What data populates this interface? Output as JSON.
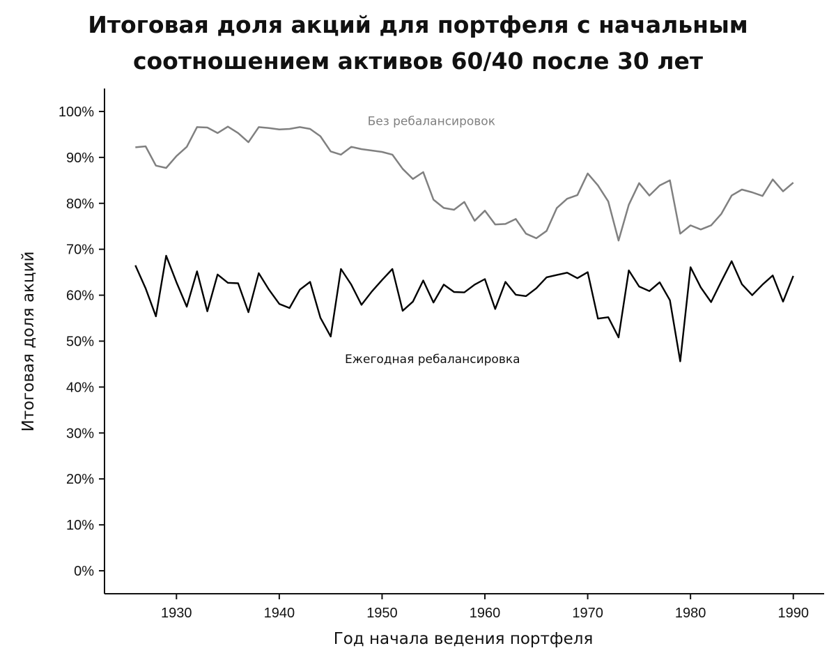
{
  "chart_data": {
    "type": "line",
    "title_line1": "Итоговая доля акций для портфеля с начальным",
    "title_line2": "соотношением активов 60/40 после 30 лет",
    "xlabel": "Год начала ведения портфеля",
    "ylabel": "Итоговая доля акций",
    "xlim": [
      1923,
      1993
    ],
    "ylim": [
      -5,
      105
    ],
    "x_ticks": [
      1930,
      1940,
      1950,
      1960,
      1970,
      1980,
      1990
    ],
    "x_tick_labels": [
      "1930",
      "1940",
      "1950",
      "1960",
      "1970",
      "1980",
      "1990"
    ],
    "y_ticks": [
      0,
      10,
      20,
      30,
      40,
      50,
      60,
      70,
      80,
      90,
      100
    ],
    "y_tick_labels": [
      "0%",
      "10%",
      "20%",
      "30%",
      "40%",
      "50%",
      "60%",
      "70%",
      "80%",
      "90%",
      "100%"
    ],
    "grid": false,
    "legend": "none",
    "x": [
      1926,
      1927,
      1928,
      1929,
      1930,
      1931,
      1932,
      1933,
      1934,
      1935,
      1936,
      1937,
      1938,
      1939,
      1940,
      1941,
      1942,
      1943,
      1944,
      1945,
      1946,
      1947,
      1948,
      1949,
      1950,
      1951,
      1952,
      1953,
      1954,
      1955,
      1956,
      1957,
      1958,
      1959,
      1960,
      1961,
      1962,
      1963,
      1964,
      1965,
      1966,
      1967,
      1968,
      1969,
      1970,
      1971,
      1972,
      1973,
      1974,
      1975,
      1976,
      1977,
      1978,
      1979,
      1980,
      1981,
      1982,
      1983,
      1984,
      1985,
      1986,
      1987,
      1988,
      1989,
      1990
    ],
    "series": [
      {
        "name": "Без ребалансировок",
        "color": "#808080",
        "values": [
          92.2,
          92.4,
          88.2,
          87.7,
          90.3,
          92.3,
          96.6,
          96.5,
          95.3,
          96.7,
          95.3,
          93.3,
          96.6,
          96.4,
          96.1,
          96.2,
          96.6,
          96.2,
          94.6,
          91.3,
          90.6,
          92.3,
          91.8,
          91.5,
          91.2,
          90.6,
          87.5,
          85.3,
          86.8,
          80.8,
          79.0,
          78.6,
          80.3,
          76.2,
          78.4,
          75.4,
          75.5,
          76.6,
          73.4,
          72.4,
          74.0,
          79.0,
          81.0,
          81.8,
          86.5,
          83.9,
          80.4,
          71.9,
          79.7,
          84.4,
          81.7,
          83.9,
          85.0,
          73.4,
          75.2,
          74.3,
          75.2,
          77.7,
          81.7,
          83.0,
          82.4,
          81.6,
          85.2,
          82.6,
          84.5
        ]
      },
      {
        "name": "Ежегодная ребалансировка",
        "color": "#000000",
        "values": [
          66.5,
          61.5,
          55.4,
          68.6,
          62.8,
          57.5,
          65.2,
          56.5,
          64.5,
          62.7,
          62.6,
          56.3,
          64.8,
          61.2,
          58.1,
          57.2,
          61.2,
          62.9,
          55.1,
          51.0,
          65.7,
          62.3,
          57.9,
          60.8,
          63.3,
          65.7,
          56.6,
          58.6,
          63.2,
          58.4,
          62.3,
          60.7,
          60.6,
          62.3,
          63.5,
          57.0,
          62.9,
          60.1,
          59.8,
          61.5,
          63.9,
          64.4,
          64.9,
          63.7,
          65.0,
          54.9,
          55.2,
          50.8,
          65.4,
          61.9,
          60.9,
          62.8,
          58.9,
          45.6,
          66.1,
          61.7,
          58.5,
          63.0,
          67.4,
          62.4,
          60.0,
          62.3,
          64.3,
          58.6,
          64.2
        ]
      }
    ],
    "annotations": [
      {
        "text": "Без ребалансировок",
        "x": 1954.8,
        "y": 97.0,
        "color": "#808080"
      },
      {
        "text": "Ежегодная ребалансировка",
        "x": 1954.9,
        "y": 45.2,
        "color": "#111111"
      }
    ]
  }
}
